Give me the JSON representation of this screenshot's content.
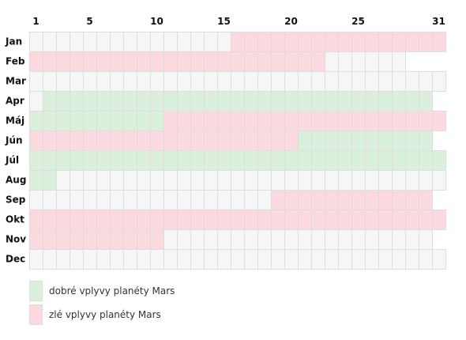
{
  "chart_data": {
    "type": "heatmap",
    "days_in_grid": 31,
    "day_ticks": [
      {
        "day": 1,
        "label": "1"
      },
      {
        "day": 5,
        "label": "5"
      },
      {
        "day": 10,
        "label": "10"
      },
      {
        "day": 15,
        "label": "15"
      },
      {
        "day": 20,
        "label": "20"
      },
      {
        "day": 25,
        "label": "25"
      },
      {
        "day": 31,
        "label": "31"
      }
    ],
    "colors": {
      "good": "#dbf0dc",
      "bad": "#fadadf",
      "neutral": "#f6f6f6",
      "grid": "#dddddd"
    },
    "months": [
      {
        "name": "Jan",
        "days": 31,
        "good": [],
        "bad": [
          [
            16,
            31
          ]
        ]
      },
      {
        "name": "Feb",
        "days": 28,
        "good": [],
        "bad": [
          [
            1,
            22
          ]
        ]
      },
      {
        "name": "Mar",
        "days": 31,
        "good": [],
        "bad": []
      },
      {
        "name": "Apr",
        "days": 30,
        "good": [
          [
            2,
            30
          ]
        ],
        "bad": []
      },
      {
        "name": "Máj",
        "days": 31,
        "good": [
          [
            1,
            10
          ]
        ],
        "bad": [
          [
            11,
            31
          ]
        ]
      },
      {
        "name": "Jún",
        "days": 30,
        "good": [
          [
            21,
            30
          ]
        ],
        "bad": [
          [
            1,
            20
          ]
        ]
      },
      {
        "name": "Júl",
        "days": 31,
        "good": [
          [
            1,
            31
          ]
        ],
        "bad": []
      },
      {
        "name": "Aug",
        "days": 31,
        "good": [
          [
            1,
            2
          ]
        ],
        "bad": []
      },
      {
        "name": "Sep",
        "days": 30,
        "good": [],
        "bad": [
          [
            19,
            30
          ]
        ]
      },
      {
        "name": "Okt",
        "days": 31,
        "good": [],
        "bad": [
          [
            1,
            31
          ]
        ]
      },
      {
        "name": "Nov",
        "days": 30,
        "good": [],
        "bad": [
          [
            1,
            10
          ]
        ]
      },
      {
        "name": "Dec",
        "days": 31,
        "good": [],
        "bad": []
      }
    ]
  },
  "legend": {
    "good_label": "dobré vplyvy planéty Mars",
    "bad_label": "zlé vplyvy planéty Mars"
  }
}
